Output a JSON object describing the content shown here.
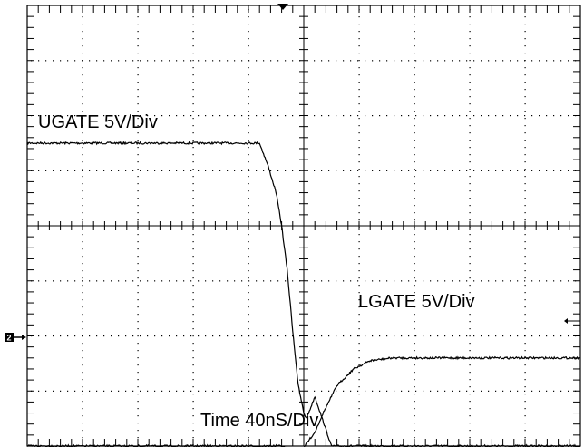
{
  "chart_data": {
    "type": "line",
    "grid": true,
    "x_unit_per_div": "40nS",
    "series": [
      {
        "name": "UGATE 5V/Div",
        "color": "#000000",
        "x_div": [
          0,
          2.5,
          4.2,
          4.35,
          4.5,
          4.6,
          4.7,
          4.8,
          4.9,
          5.0,
          5.05,
          5.2,
          5.5,
          7.0,
          10.0
        ],
        "y_div": [
          1.5,
          1.5,
          1.5,
          1.1,
          0.6,
          0.0,
          -0.8,
          -1.9,
          -2.9,
          -3.4,
          -3.5,
          -3.1,
          -4.0,
          -4.0,
          -4.0
        ]
      },
      {
        "name": "LGATE 5V/Div",
        "color": "#000000",
        "x_div": [
          0,
          4.6,
          4.8,
          5.0,
          5.05,
          5.2,
          5.35,
          5.6,
          5.9,
          6.2,
          6.6,
          7.0,
          10.0
        ],
        "y_div": [
          -4.0,
          -4.0,
          -4.1,
          -4.05,
          -3.95,
          -3.75,
          -3.4,
          -2.9,
          -2.6,
          -2.45,
          -2.4,
          -2.4,
          -2.4
        ]
      }
    ]
  },
  "labels": {
    "ugate": "UGATE 5V/Div",
    "lgate": "LGATE 5V/Div",
    "time": "Time 40nS/Div",
    "channel_marker": "2"
  }
}
